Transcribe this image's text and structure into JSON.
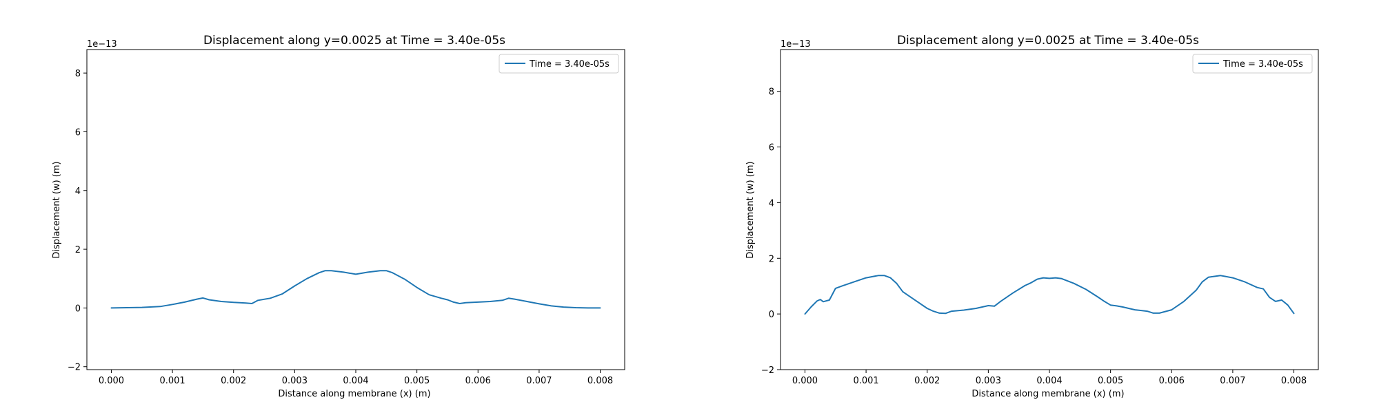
{
  "chart_data": [
    {
      "type": "line",
      "title": "Displacement along y=0.0025 at Time = 3.40e-05s",
      "xlabel": "Distance along membrane (x) (m)",
      "ylabel": "Displacement (w) (m)",
      "offset_label": "1e−13",
      "xlim": [
        -0.0004,
        0.0084
      ],
      "ylim": [
        -2.1,
        8.8
      ],
      "xticks": [
        0.0,
        0.001,
        0.002,
        0.003,
        0.004,
        0.005,
        0.006,
        0.007,
        0.008
      ],
      "xtick_labels": [
        "0.000",
        "0.001",
        "0.002",
        "0.003",
        "0.004",
        "0.005",
        "0.006",
        "0.007",
        "0.008"
      ],
      "yticks": [
        -2,
        0,
        2,
        4,
        6,
        8
      ],
      "ytick_labels": [
        "−2",
        "0",
        "2",
        "4",
        "6",
        "8"
      ],
      "legend_position": "top-right",
      "grid": false,
      "series": [
        {
          "name": "Time = 3.40e-05s",
          "color": "#1f77b4",
          "x": [
            0.0,
            0.0005,
            0.0008,
            0.001,
            0.0012,
            0.0014,
            0.0015,
            0.0016,
            0.0018,
            0.002,
            0.0022,
            0.0023,
            0.0024,
            0.0026,
            0.0028,
            0.003,
            0.0032,
            0.0034,
            0.0035,
            0.0036,
            0.0038,
            0.004,
            0.0042,
            0.0044,
            0.0045,
            0.0046,
            0.0048,
            0.005,
            0.0052,
            0.0054,
            0.0055,
            0.0056,
            0.0057,
            0.0058,
            0.006,
            0.0062,
            0.0064,
            0.0065,
            0.0066,
            0.0068,
            0.007,
            0.0072,
            0.0074,
            0.0076,
            0.0078,
            0.008
          ],
          "y": [
            0.0,
            0.02,
            0.05,
            0.12,
            0.2,
            0.3,
            0.34,
            0.28,
            0.22,
            0.19,
            0.17,
            0.15,
            0.26,
            0.33,
            0.48,
            0.75,
            1.0,
            1.2,
            1.27,
            1.27,
            1.22,
            1.15,
            1.22,
            1.27,
            1.27,
            1.2,
            0.98,
            0.7,
            0.45,
            0.33,
            0.28,
            0.2,
            0.15,
            0.18,
            0.2,
            0.22,
            0.26,
            0.33,
            0.3,
            0.22,
            0.14,
            0.07,
            0.03,
            0.01,
            0.0,
            0.0
          ]
        }
      ]
    },
    {
      "type": "line",
      "title": "Displacement along y=0.0025 at Time = 3.40e-05s",
      "xlabel": "Distance along membrane (x) (m)",
      "ylabel": "Displacement (w) (m)",
      "offset_label": "1e−13",
      "xlim": [
        -0.0004,
        0.0084
      ],
      "ylim": [
        -2.0,
        9.5
      ],
      "xticks": [
        0.0,
        0.001,
        0.002,
        0.003,
        0.004,
        0.005,
        0.006,
        0.007,
        0.008
      ],
      "xtick_labels": [
        "0.000",
        "0.001",
        "0.002",
        "0.003",
        "0.004",
        "0.005",
        "0.006",
        "0.007",
        "0.008"
      ],
      "yticks": [
        -2,
        0,
        2,
        4,
        6,
        8
      ],
      "ytick_labels": [
        "−2",
        "0",
        "2",
        "4",
        "6",
        "8"
      ],
      "legend_position": "top-right",
      "grid": false,
      "series": [
        {
          "name": "Time = 3.40e-05s",
          "color": "#1f77b4",
          "x": [
            0.0,
            0.0001,
            0.0002,
            0.00025,
            0.0003,
            0.0004,
            0.0005,
            0.0006,
            0.0008,
            0.001,
            0.0012,
            0.0013,
            0.0014,
            0.0015,
            0.0016,
            0.0018,
            0.002,
            0.0021,
            0.0022,
            0.0023,
            0.0024,
            0.0026,
            0.0028,
            0.003,
            0.0031,
            0.0032,
            0.0034,
            0.0036,
            0.0037,
            0.0038,
            0.0039,
            0.004,
            0.0041,
            0.0042,
            0.0044,
            0.0046,
            0.0048,
            0.0049,
            0.005,
            0.0051,
            0.0052,
            0.0054,
            0.0056,
            0.0057,
            0.0058,
            0.006,
            0.0062,
            0.0064,
            0.0065,
            0.0066,
            0.0068,
            0.007,
            0.0072,
            0.0074,
            0.0075,
            0.0076,
            0.0077,
            0.0078,
            0.0079,
            0.008
          ],
          "y": [
            0.0,
            0.25,
            0.47,
            0.52,
            0.44,
            0.5,
            0.92,
            1.0,
            1.15,
            1.3,
            1.38,
            1.38,
            1.3,
            1.1,
            0.8,
            0.5,
            0.2,
            0.1,
            0.03,
            0.02,
            0.1,
            0.14,
            0.2,
            0.3,
            0.28,
            0.45,
            0.75,
            1.02,
            1.12,
            1.25,
            1.3,
            1.28,
            1.3,
            1.27,
            1.1,
            0.88,
            0.6,
            0.45,
            0.32,
            0.29,
            0.25,
            0.15,
            0.1,
            0.03,
            0.03,
            0.15,
            0.45,
            0.85,
            1.15,
            1.32,
            1.38,
            1.3,
            1.15,
            0.95,
            0.9,
            0.6,
            0.45,
            0.5,
            0.32,
            0.02
          ]
        }
      ]
    }
  ]
}
